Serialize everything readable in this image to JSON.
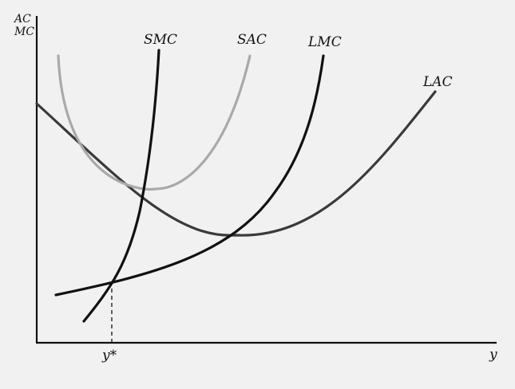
{
  "axes": {
    "y_axis_label_line1": "AC",
    "y_axis_label_line2": "MC",
    "x_axis_label": "y",
    "x_tick_label": "y*"
  },
  "curves": {
    "smc": {
      "label": "SMC",
      "color": "#111111"
    },
    "sac": {
      "label": "SAC",
      "color": "#a9a9a9"
    },
    "lmc": {
      "label": "LMC",
      "color": "#111111"
    },
    "lac": {
      "label": "LAC",
      "color": "#3a3a3a"
    }
  },
  "colors": {
    "background": "#f1f1f1",
    "axis": "#111111",
    "guide": "#111111"
  }
}
